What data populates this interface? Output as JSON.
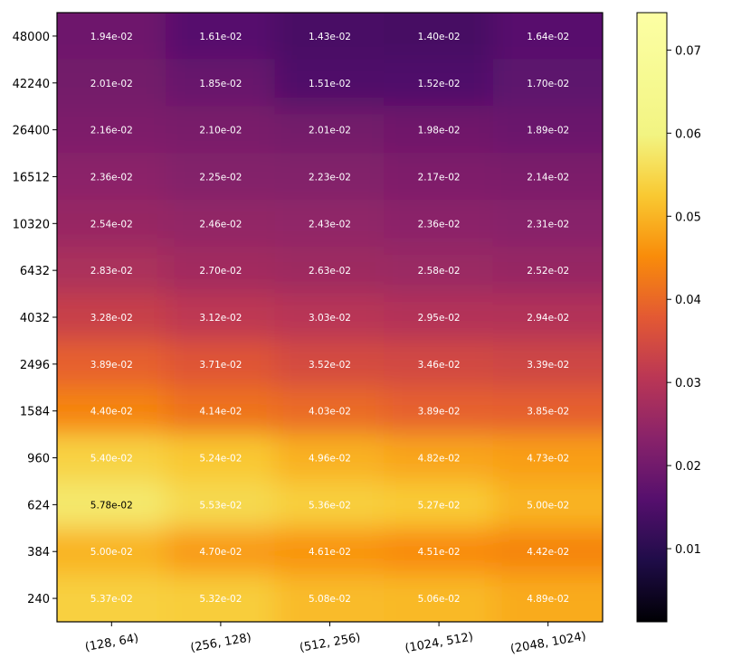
{
  "chart_data": {
    "type": "heatmap",
    "title": "",
    "xlabel": "",
    "ylabel": "",
    "colormap": "inferno",
    "x_categories": [
      "(128, 64)",
      "(256, 128)",
      "(512, 256)",
      "(1024, 512)",
      "(2048, 1024)"
    ],
    "y_categories": [
      "48000",
      "42240",
      "26400",
      "16512",
      "10320",
      "6432",
      "4032",
      "2496",
      "1584",
      "960",
      "624",
      "384",
      "240"
    ],
    "values": [
      [
        0.0194,
        0.0161,
        0.0143,
        0.014,
        0.0164
      ],
      [
        0.0201,
        0.0185,
        0.0151,
        0.0152,
        0.017
      ],
      [
        0.0216,
        0.021,
        0.0201,
        0.0198,
        0.0189
      ],
      [
        0.0236,
        0.0225,
        0.0223,
        0.0217,
        0.0214
      ],
      [
        0.0254,
        0.0246,
        0.0243,
        0.0236,
        0.0231
      ],
      [
        0.0283,
        0.027,
        0.0263,
        0.0258,
        0.0252
      ],
      [
        0.0328,
        0.0312,
        0.0303,
        0.0295,
        0.0294
      ],
      [
        0.0389,
        0.0371,
        0.0352,
        0.0346,
        0.0339
      ],
      [
        0.044,
        0.0414,
        0.0403,
        0.0389,
        0.0385
      ],
      [
        0.054,
        0.0524,
        0.0496,
        0.0482,
        0.0473
      ],
      [
        0.0578,
        0.0553,
        0.0536,
        0.0527,
        0.05
      ],
      [
        0.05,
        0.047,
        0.0461,
        0.0451,
        0.0442
      ],
      [
        0.0537,
        0.0532,
        0.0508,
        0.0506,
        0.0489
      ]
    ],
    "labels": [
      [
        "1.94e-02",
        "1.61e-02",
        "1.43e-02",
        "1.40e-02",
        "1.64e-02"
      ],
      [
        "2.01e-02",
        "1.85e-02",
        "1.51e-02",
        "1.52e-02",
        "1.70e-02"
      ],
      [
        "2.16e-02",
        "2.10e-02",
        "2.01e-02",
        "1.98e-02",
        "1.89e-02"
      ],
      [
        "2.36e-02",
        "2.25e-02",
        "2.23e-02",
        "2.17e-02",
        "2.14e-02"
      ],
      [
        "2.54e-02",
        "2.46e-02",
        "2.43e-02",
        "2.36e-02",
        "2.31e-02"
      ],
      [
        "2.83e-02",
        "2.70e-02",
        "2.63e-02",
        "2.58e-02",
        "2.52e-02"
      ],
      [
        "3.28e-02",
        "3.12e-02",
        "3.03e-02",
        "2.95e-02",
        "2.94e-02"
      ],
      [
        "3.89e-02",
        "3.71e-02",
        "3.52e-02",
        "3.46e-02",
        "3.39e-02"
      ],
      [
        "4.40e-02",
        "4.14e-02",
        "4.03e-02",
        "3.89e-02",
        "3.85e-02"
      ],
      [
        "5.40e-02",
        "5.24e-02",
        "4.96e-02",
        "4.82e-02",
        "4.73e-02"
      ],
      [
        "5.78e-02",
        "5.53e-02",
        "5.36e-02",
        "5.27e-02",
        "5.00e-02"
      ],
      [
        "5.00e-02",
        "4.70e-02",
        "4.61e-02",
        "4.51e-02",
        "4.42e-02"
      ],
      [
        "5.37e-02",
        "5.32e-02",
        "5.08e-02",
        "5.06e-02",
        "4.89e-02"
      ]
    ],
    "colorbar": {
      "min": 0.0012,
      "max": 0.0745,
      "ticks": [
        0.01,
        0.02,
        0.03,
        0.04,
        0.05,
        0.06,
        0.07
      ],
      "tick_labels": [
        "0.01",
        "0.02",
        "0.03",
        "0.04",
        "0.05",
        "0.06",
        "0.07"
      ]
    },
    "dark_label_threshold": 0.057,
    "label_color_light": "#ffffff",
    "label_color_dark": "#000000"
  }
}
